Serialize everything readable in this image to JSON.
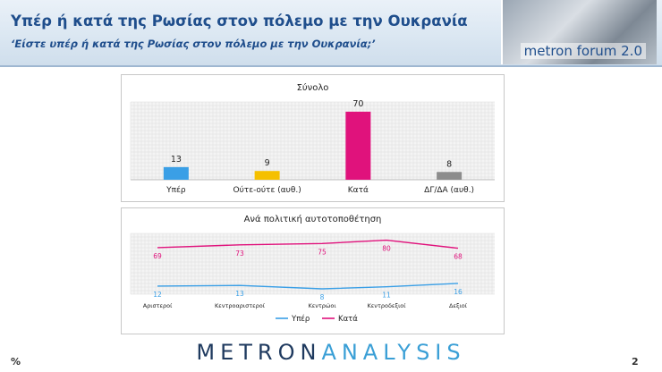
{
  "header": {
    "title": "Υπέρ ή κατά της Ρωσίας στον πόλεμο με την Ουκρανία",
    "subtitle": "‘Είστε υπέρ ή κατά της Ρωσίας στον πόλεμο με την Ουκρανία;’",
    "brand": "metron forum 2.0"
  },
  "footer": {
    "logo_first": "METRON",
    "logo_second": "ANALYSIS",
    "percent_sign": "%",
    "page_number": "2"
  },
  "colors": {
    "title_blue": "#1f4e8c",
    "yper_blue": "#3a9fe6",
    "neither_yellow": "#f5c000",
    "kata_pink": "#e0127c",
    "dk_gray": "#8c8c8c"
  },
  "chart_data": [
    {
      "type": "bar",
      "title": "Σύνολο",
      "categories": [
        "Υπέρ",
        "Ούτε-ούτε (αυθ.)",
        "Κατά",
        "ΔΓ/ΔΑ (αυθ.)"
      ],
      "values": [
        13,
        9,
        70,
        8
      ],
      "bar_colors": [
        "#3a9fe6",
        "#f5c000",
        "#e0127c",
        "#8c8c8c"
      ],
      "ylim": [
        0,
        80
      ],
      "grid": true,
      "legend": "none"
    },
    {
      "type": "line",
      "title": "Ανά πολιτική αυτοτοποθέτηση",
      "categories": [
        "Αριστεροί",
        "Κεντροαριστεροί",
        "Κεντρώοι",
        "Κεντροδεξιοί",
        "Δεξιοί"
      ],
      "series": [
        {
          "name": "Υπέρ",
          "color": "#3a9fe6",
          "values": [
            12,
            13,
            8,
            11,
            16
          ]
        },
        {
          "name": "Κατά",
          "color": "#e0127c",
          "values": [
            69,
            73,
            75,
            80,
            68
          ]
        }
      ],
      "ylim": [
        0,
        90
      ],
      "grid": true,
      "legend": "bottom"
    }
  ]
}
